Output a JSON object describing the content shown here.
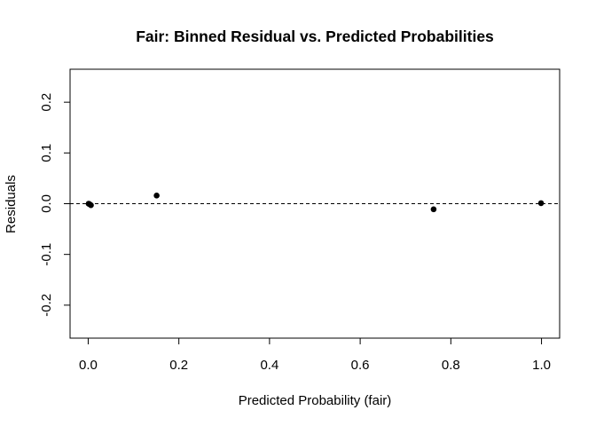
{
  "chart_data": {
    "type": "scatter",
    "title": "Fair: Binned Residual vs. Predicted Probabilities",
    "xlabel": "Predicted Probability (fair)",
    "ylabel": "Residuals",
    "xlim": [
      -0.04,
      1.04
    ],
    "ylim": [
      -0.265,
      0.265
    ],
    "x_ticks": [
      0.0,
      0.2,
      0.4,
      0.6,
      0.8,
      1.0
    ],
    "x_tick_labels": [
      "0.0",
      "0.2",
      "0.4",
      "0.6",
      "0.8",
      "1.0"
    ],
    "y_ticks": [
      -0.2,
      -0.1,
      0.0,
      0.1,
      0.2
    ],
    "y_tick_labels": [
      "-0.2",
      "-0.1",
      "0.0",
      "0.1",
      "0.2"
    ],
    "reference_line": {
      "y": 0,
      "style": "dashed"
    },
    "grid": false,
    "legend": "none",
    "point_color": "#000000",
    "points": [
      {
        "x": 0.001,
        "y": 0.0
      },
      {
        "x": 0.003,
        "y": -0.001
      },
      {
        "x": 0.006,
        "y": -0.003
      },
      {
        "x": 0.151,
        "y": 0.016
      },
      {
        "x": 0.762,
        "y": -0.011
      },
      {
        "x": 0.999,
        "y": 0.001
      }
    ]
  }
}
